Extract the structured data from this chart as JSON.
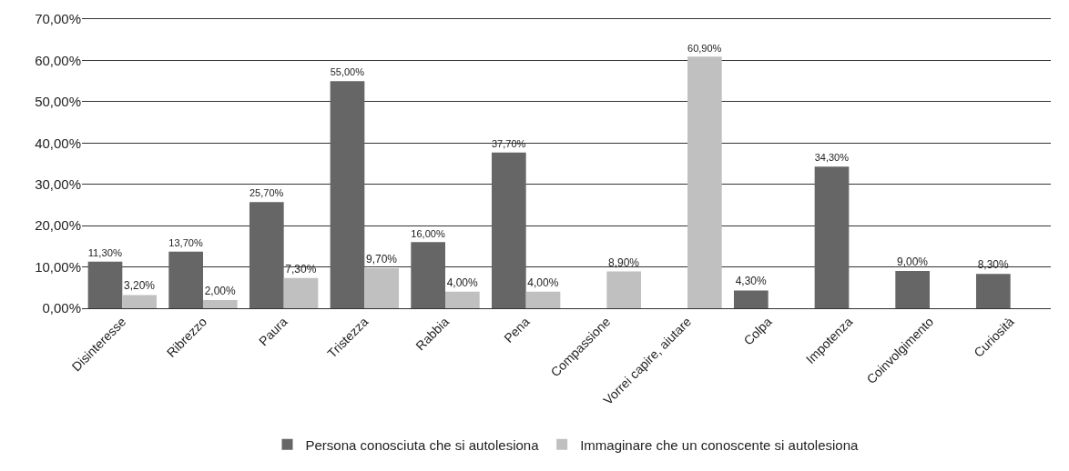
{
  "chart_data": {
    "type": "bar",
    "categories": [
      "Disinteresse",
      "Ribrezzo",
      "Paura",
      "Tristezza",
      "Rabbia",
      "Pena",
      "Compassione",
      "Vorrei capire, aiutare",
      "Colpa",
      "Impotenza",
      "Coinvolgimento",
      "Curiosità"
    ],
    "series": [
      {
        "name": "Persona conosciuta che si autolesiona",
        "color": "#666666",
        "values": [
          11.3,
          13.7,
          25.7,
          55.0,
          16.0,
          37.7,
          null,
          null,
          4.3,
          34.3,
          9.0,
          8.3
        ],
        "value_labels": [
          "11,30%",
          "13,70%",
          "25,70%",
          "55,00%",
          "16,00%",
          "37,70%",
          null,
          null,
          "4,30%",
          "34,30%",
          "9,00%",
          "8,30%"
        ]
      },
      {
        "name": "Immaginare che un conoscente si autolesiona",
        "color": "#c0c0c0",
        "values": [
          3.2,
          2.0,
          7.3,
          9.7,
          4.0,
          4.0,
          8.9,
          60.9,
          null,
          null,
          null,
          null
        ],
        "value_labels": [
          "3,20%",
          "2,00%",
          "7,30%",
          "9,70%",
          "4,00%",
          "4,00%",
          "8,90%",
          "60,90%",
          null,
          null,
          null,
          null
        ]
      }
    ],
    "ylim": [
      0,
      70
    ],
    "yticks": [
      {
        "value": 0,
        "label": "0,00%"
      },
      {
        "value": 10,
        "label": "10,00%"
      },
      {
        "value": 20,
        "label": "20,00%"
      },
      {
        "value": 30,
        "label": "30,00%"
      },
      {
        "value": 40,
        "label": "40,00%"
      },
      {
        "value": 50,
        "label": "50,00%"
      },
      {
        "value": 60,
        "label": "60,00%"
      },
      {
        "value": 70,
        "label": "70,00%"
      }
    ],
    "grid": "y",
    "legend": "bottom"
  }
}
